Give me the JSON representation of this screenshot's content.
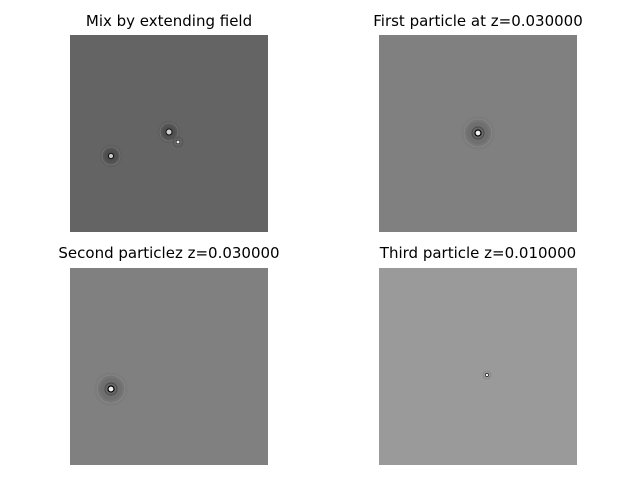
{
  "panels": [
    {
      "title": "Mix by extending field",
      "bg": "#646464"
    },
    {
      "title": "First particle at z=0.030000",
      "bg": "#808080"
    },
    {
      "title": "Second particlez z=0.030000",
      "bg": "#808080"
    },
    {
      "title": "Third particle z=0.010000",
      "bg": "#9a9a9a"
    }
  ]
}
